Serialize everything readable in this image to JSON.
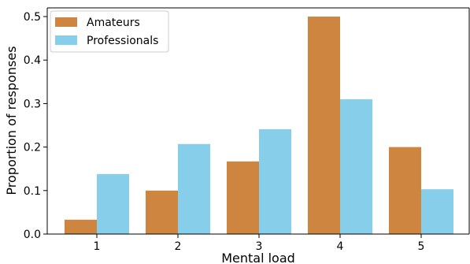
{
  "chart_data": {
    "type": "bar",
    "categories": [
      "1",
      "2",
      "3",
      "4",
      "5"
    ],
    "series": [
      {
        "name": "Amateurs",
        "values": [
          0.033,
          0.1,
          0.167,
          0.5,
          0.2
        ],
        "color": "#CD853F"
      },
      {
        "name": "Professionals",
        "values": [
          0.138,
          0.207,
          0.241,
          0.31,
          0.103
        ],
        "color": "#87CEEB"
      }
    ],
    "xlabel": "Mental load",
    "ylabel": "Proportion of responses",
    "ylim": [
      0,
      0.52
    ],
    "yticks": [
      "0.0",
      "0.1",
      "0.2",
      "0.3",
      "0.4",
      "0.5"
    ],
    "grid": false,
    "legend": "top-left"
  }
}
